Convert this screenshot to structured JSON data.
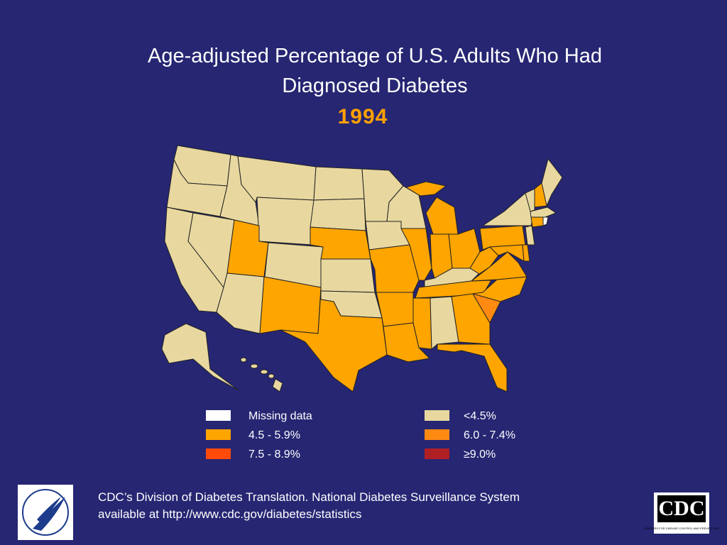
{
  "title": [
    "Age-adjusted Percentage of U.S. Adults Who Had",
    "Diagnosed Diabetes"
  ],
  "year": "1994",
  "legend": {
    "items": [
      {
        "label": "Missing data",
        "color": "#ffffff"
      },
      {
        "label": "4.5 - 5.9%",
        "color": "#ffa500"
      },
      {
        "label": "7.5 - 8.9%",
        "color": "#ff4a0a"
      },
      {
        "label": "<4.5%",
        "color": "#e8d8a0"
      },
      {
        "label": "6.0 - 7.4%",
        "color": "#ff8a12"
      },
      {
        "label": "≥9.0%",
        "color": "#b01f24"
      }
    ]
  },
  "footer": [
    "CDC’s Division of Diabetes Translation.  National Diabetes Surveillance System",
    "available at http://www.cdc.gov/diabetes/statistics"
  ],
  "logo": {
    "text": "CDC",
    "tagline": "CENTERS FOR DISEASE CONTROL AND PREVENTION"
  }
}
